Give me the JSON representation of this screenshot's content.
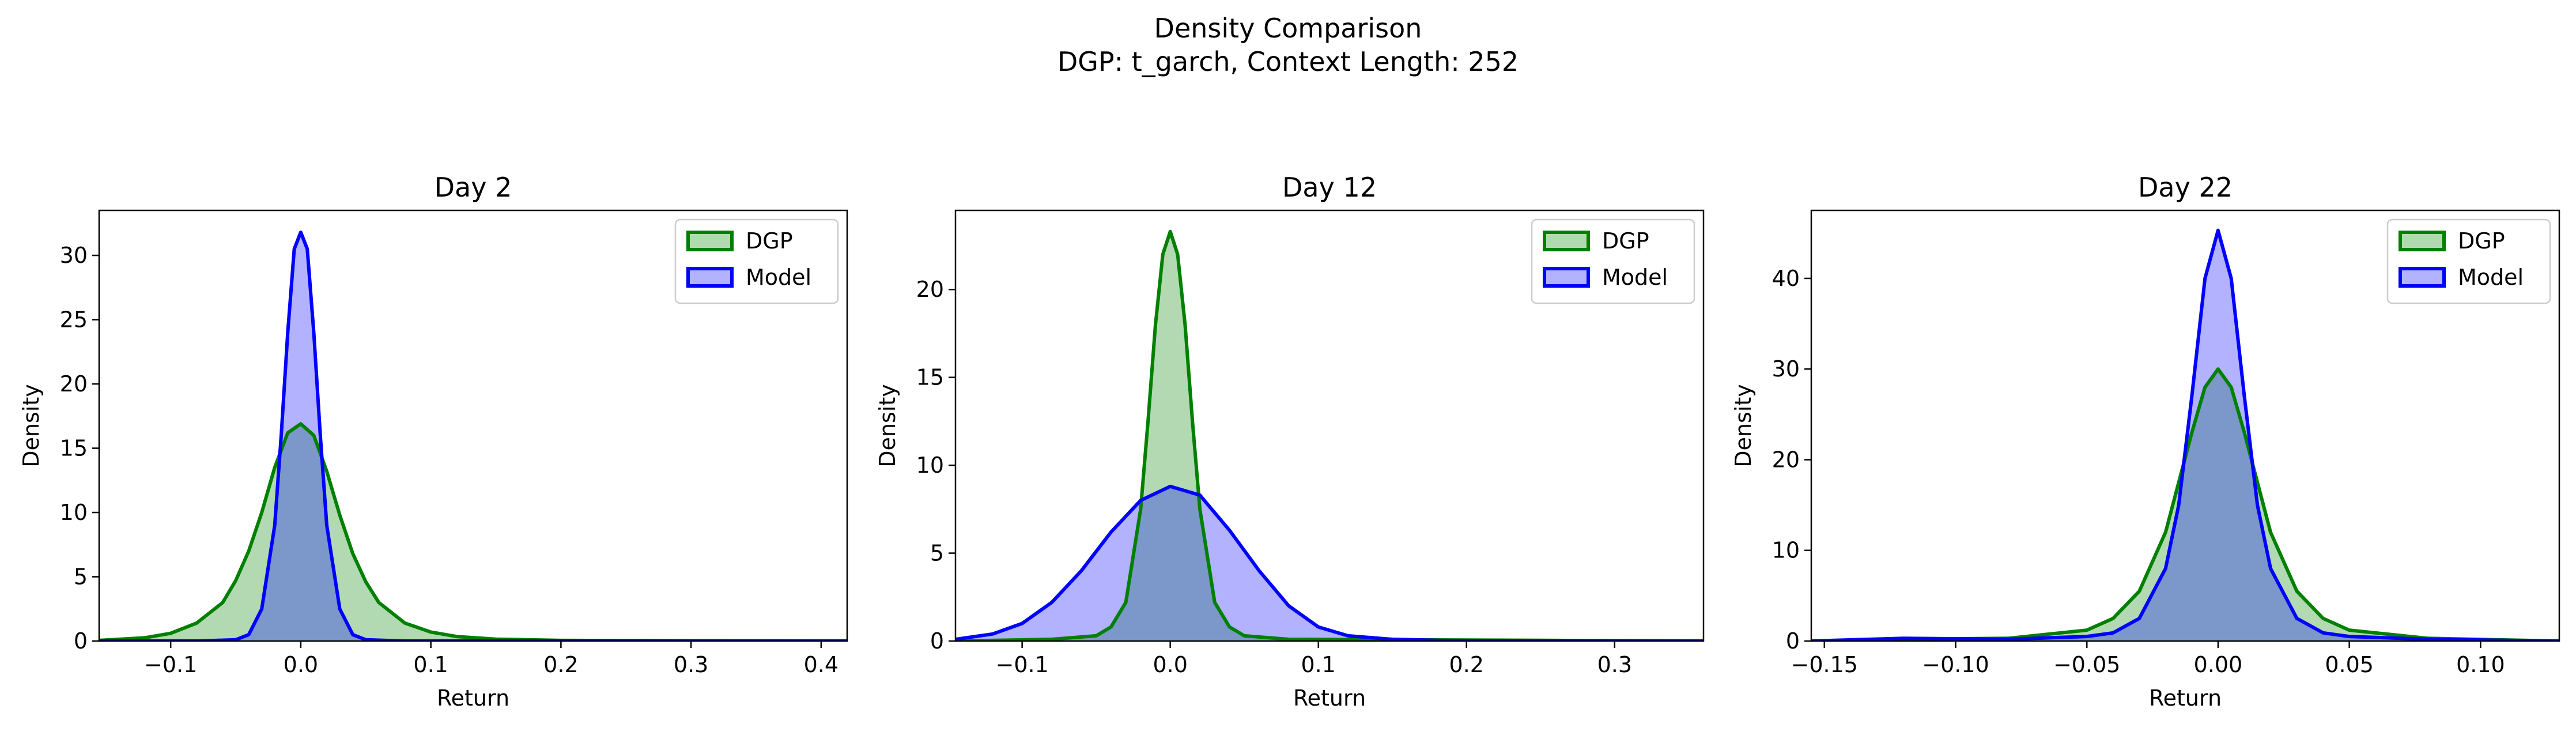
{
  "figure": {
    "suptitle_line1": "Density Comparison",
    "suptitle_line2": "DGP: t_garch, Context Length: 252"
  },
  "colors": {
    "dgp": "#008000",
    "model": "#0000ff",
    "dgp_fill": "#008000",
    "model_fill": "#0000ff"
  },
  "chart_data": [
    {
      "type": "area",
      "title": "Day 2",
      "xlabel": "Return",
      "ylabel": "Density",
      "xlim": [
        -0.155,
        0.42
      ],
      "ylim": [
        0,
        33.5
      ],
      "xticks": [
        -0.1,
        0.0,
        0.1,
        0.2,
        0.3,
        0.4
      ],
      "xtick_labels": [
        "−0.1",
        "0.0",
        "0.1",
        "0.2",
        "0.3",
        "0.4"
      ],
      "yticks": [
        0,
        5,
        10,
        15,
        20,
        25,
        30
      ],
      "ytick_labels": [
        "0",
        "5",
        "10",
        "15",
        "20",
        "25",
        "30"
      ],
      "legend": "top-right",
      "series": [
        {
          "name": "DGP",
          "x": [
            -0.155,
            -0.12,
            -0.1,
            -0.08,
            -0.06,
            -0.05,
            -0.04,
            -0.03,
            -0.02,
            -0.01,
            0.0,
            0.01,
            0.02,
            0.03,
            0.04,
            0.05,
            0.06,
            0.08,
            0.1,
            0.12,
            0.15,
            0.2,
            0.3,
            0.42
          ],
          "y": [
            0.05,
            0.25,
            0.6,
            1.4,
            3.0,
            4.7,
            7.0,
            10.0,
            13.5,
            16.2,
            16.9,
            16.0,
            13.2,
            9.8,
            6.8,
            4.6,
            3.0,
            1.4,
            0.7,
            0.35,
            0.15,
            0.05,
            0.02,
            0.0
          ]
        },
        {
          "name": "Model",
          "x": [
            -0.155,
            -0.08,
            -0.05,
            -0.04,
            -0.03,
            -0.02,
            -0.015,
            -0.01,
            -0.005,
            0.0,
            0.005,
            0.01,
            0.015,
            0.02,
            0.03,
            0.04,
            0.05,
            0.08,
            0.2,
            0.42
          ],
          "y": [
            0.0,
            0.0,
            0.1,
            0.5,
            2.5,
            9.0,
            16.0,
            24.0,
            30.5,
            31.8,
            30.5,
            24.0,
            16.0,
            9.0,
            2.5,
            0.5,
            0.1,
            0.0,
            0.0,
            0.0
          ]
        }
      ]
    },
    {
      "type": "area",
      "title": "Day 12",
      "xlabel": "Return",
      "ylabel": "Density",
      "xlim": [
        -0.145,
        0.36
      ],
      "ylim": [
        0,
        24.5
      ],
      "xticks": [
        -0.1,
        0.0,
        0.1,
        0.2,
        0.3
      ],
      "xtick_labels": [
        "−0.1",
        "0.0",
        "0.1",
        "0.2",
        "0.3"
      ],
      "yticks": [
        0,
        5,
        10,
        15,
        20
      ],
      "ytick_labels": [
        "0",
        "5",
        "10",
        "15",
        "20"
      ],
      "legend": "top-right",
      "series": [
        {
          "name": "DGP",
          "x": [
            -0.145,
            -0.08,
            -0.05,
            -0.04,
            -0.03,
            -0.02,
            -0.015,
            -0.01,
            -0.005,
            0.0,
            0.005,
            0.01,
            0.015,
            0.02,
            0.03,
            0.04,
            0.05,
            0.08,
            0.36
          ],
          "y": [
            0.0,
            0.1,
            0.3,
            0.8,
            2.2,
            7.5,
            12.5,
            18.0,
            22.0,
            23.3,
            22.0,
            18.0,
            12.5,
            7.5,
            2.2,
            0.8,
            0.3,
            0.1,
            0.0
          ]
        },
        {
          "name": "Model",
          "x": [
            -0.145,
            -0.12,
            -0.1,
            -0.08,
            -0.06,
            -0.04,
            -0.02,
            0.0,
            0.02,
            0.04,
            0.06,
            0.08,
            0.1,
            0.12,
            0.15,
            0.2,
            0.36
          ],
          "y": [
            0.1,
            0.4,
            1.0,
            2.2,
            4.0,
            6.2,
            8.0,
            8.8,
            8.3,
            6.3,
            4.0,
            2.0,
            0.8,
            0.3,
            0.1,
            0.0,
            0.0
          ]
        }
      ]
    },
    {
      "type": "area",
      "title": "Day 22",
      "xlabel": "Return",
      "ylabel": "Density",
      "xlim": [
        -0.155,
        0.13
      ],
      "ylim": [
        0,
        47.5
      ],
      "xticks": [
        -0.15,
        -0.1,
        -0.05,
        0.0,
        0.05,
        0.1
      ],
      "xtick_labels": [
        "−0.15",
        "−0.10",
        "−0.05",
        "0.00",
        "0.05",
        "0.10"
      ],
      "yticks": [
        0,
        10,
        20,
        30,
        40
      ],
      "ytick_labels": [
        "0",
        "10",
        "20",
        "30",
        "40"
      ],
      "legend": "top-right",
      "series": [
        {
          "name": "DGP",
          "x": [
            -0.155,
            -0.12,
            -0.08,
            -0.05,
            -0.04,
            -0.03,
            -0.02,
            -0.015,
            -0.01,
            -0.005,
            0.0,
            0.005,
            0.01,
            0.015,
            0.02,
            0.03,
            0.04,
            0.05,
            0.08,
            0.13
          ],
          "y": [
            0.0,
            0.2,
            0.3,
            1.2,
            2.5,
            5.5,
            12.0,
            17.5,
            23.0,
            28.0,
            30.0,
            28.0,
            23.0,
            17.5,
            12.0,
            5.5,
            2.5,
            1.2,
            0.3,
            0.0
          ]
        },
        {
          "name": "Model",
          "x": [
            -0.155,
            -0.12,
            -0.08,
            -0.05,
            -0.04,
            -0.03,
            -0.02,
            -0.015,
            -0.01,
            -0.005,
            0.0,
            0.005,
            0.01,
            0.015,
            0.02,
            0.03,
            0.04,
            0.05,
            0.08,
            0.13
          ],
          "y": [
            0.0,
            0.3,
            0.2,
            0.5,
            0.9,
            2.5,
            8.0,
            15.0,
            27.0,
            40.0,
            45.3,
            40.0,
            27.0,
            15.0,
            8.0,
            2.5,
            0.9,
            0.5,
            0.2,
            0.0
          ]
        }
      ]
    }
  ]
}
